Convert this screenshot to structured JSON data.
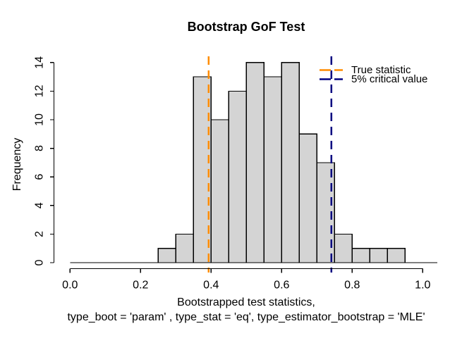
{
  "chart_data": {
    "type": "bar",
    "subtype": "histogram",
    "title": "Bootstrap GoF Test",
    "xlabel_line1": "Bootstrapped test statistics,",
    "xlabel_line2": "type_boot = 'param' , type_stat = 'eq', type_estimator_bootstrap = 'MLE'",
    "ylabel": "Frequency",
    "xlim": [
      0,
      1
    ],
    "ylim": [
      0,
      14
    ],
    "grid": "off",
    "x_tick_values": [
      0,
      0.2,
      0.4,
      0.6,
      0.8,
      1.0
    ],
    "x_tick_labels": [
      "0.0",
      "0.2",
      "0.4",
      "0.6",
      "0.8",
      "1.0"
    ],
    "y_tick_values": [
      0,
      2,
      4,
      6,
      8,
      10,
      12,
      14
    ],
    "y_tick_labels": [
      "0",
      "2",
      "4",
      "6",
      "8",
      "10",
      "12",
      "14"
    ],
    "bins": {
      "start": 0.25,
      "width": 0.05
    },
    "bin_edges": [
      0.25,
      0.3,
      0.35,
      0.4,
      0.45,
      0.5,
      0.55,
      0.6,
      0.65,
      0.7,
      0.75,
      0.8,
      0.85,
      0.9,
      0.95
    ],
    "counts": [
      1,
      2,
      13,
      10,
      12,
      14,
      13,
      14,
      9,
      7,
      2,
      1,
      1,
      1
    ],
    "total_count": 100,
    "bar_fill": "#d4d4d4",
    "bar_stroke": "#000000",
    "vlines": [
      {
        "name": "true-statistic-line",
        "x": 0.393,
        "color": "#ff8c00",
        "style": "dashed"
      },
      {
        "name": "critical-value-line",
        "x": 0.741,
        "color": "#000080",
        "style": "dashed"
      }
    ],
    "legend": {
      "position": "topright",
      "items": [
        {
          "label": "True statistic",
          "color": "#ff8c00"
        },
        {
          "label": "5% critical value",
          "color": "#000080"
        }
      ]
    }
  }
}
